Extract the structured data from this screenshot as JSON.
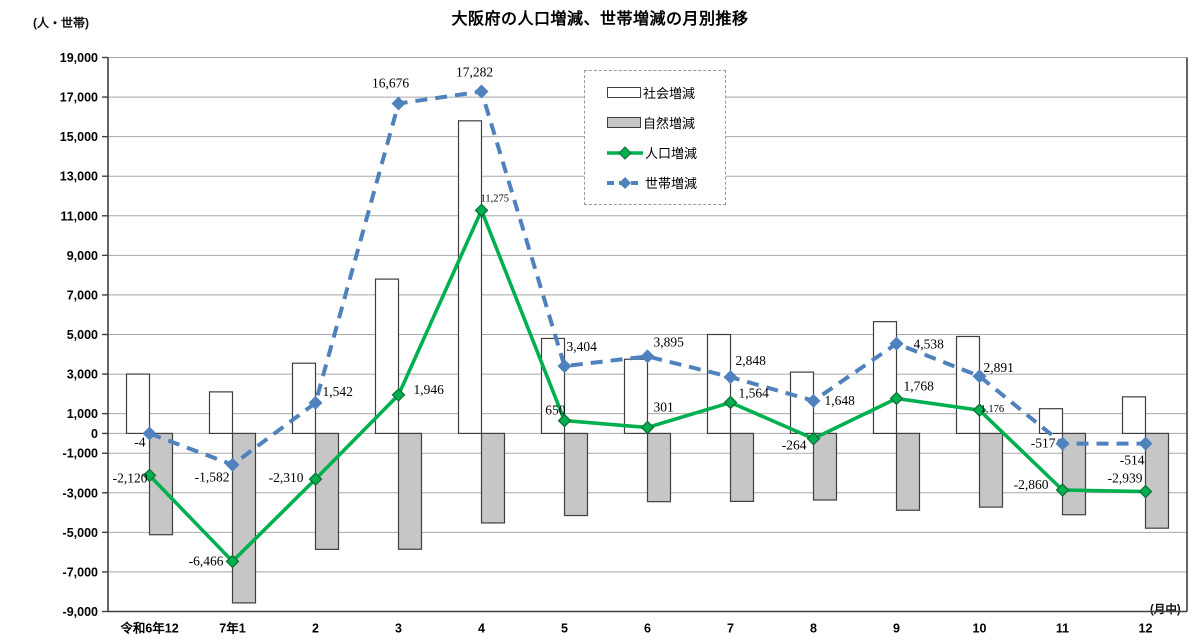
{
  "title": "大阪府の人口増減、世帯増減の月別推移",
  "y_axis_unit": "(人・世帯)",
  "x_axis_note": "(月中)",
  "legend": {
    "items": [
      {
        "label": "社会増減",
        "type": "bar",
        "color": "#FFFFFF"
      },
      {
        "label": "自然増減",
        "type": "bar",
        "color": "#C6C6C6"
      },
      {
        "label": "人口増減",
        "type": "line",
        "color": "#00B050"
      },
      {
        "label": "世帯増減",
        "type": "dashed-line",
        "color": "#4F81BD"
      }
    ]
  },
  "chart_data": {
    "type": "bar",
    "subtype": "bar+line combo",
    "title": "大阪府の人口増減、世帯増減の月別推移",
    "xlabel": "(月中)",
    "ylabel": "(人・世帯)",
    "categories": [
      "令和6年12",
      "7年1",
      "2",
      "3",
      "4",
      "5",
      "6",
      "7",
      "8",
      "9",
      "10",
      "11",
      "12"
    ],
    "y_axis": {
      "min": -9000,
      "max": 19000,
      "gridline_step": 2000,
      "ticks": [
        19000,
        17000,
        15000,
        13000,
        11000,
        9000,
        7000,
        5000,
        3000,
        1000,
        0,
        -1000,
        -3000,
        -5000,
        -7000,
        -9000
      ]
    },
    "grid": true,
    "legend_position": "inset top-center",
    "series": [
      {
        "name": "社会増減",
        "type": "bar",
        "fill": "#FFFFFF",
        "border": "#3F3F3F",
        "values": [
          3000,
          2100,
          3550,
          7800,
          15800,
          4800,
          3750,
          5000,
          3100,
          5650,
          4900,
          1250,
          1850
        ]
      },
      {
        "name": "自然増減",
        "type": "bar",
        "fill": "#C6C6C6",
        "border": "#3F3F3F",
        "values": [
          -5120,
          -8566,
          -5860,
          -5854,
          -4525,
          -4150,
          -3449,
          -3436,
          -3364,
          -3882,
          -3724,
          -4110,
          -4789
        ]
      },
      {
        "name": "人口増減",
        "type": "line",
        "color": "#00B050",
        "values": [
          -2120,
          -6466,
          -2310,
          1946,
          11275,
          650,
          301,
          1564,
          -264,
          1768,
          1176,
          -2860,
          -2939
        ],
        "labels": [
          "-2,120",
          "-6,466",
          "-2,310",
          "1,946",
          "11,275",
          "650",
          "301",
          "1,564",
          "-264",
          "1,768",
          "1,176",
          "-2,860",
          "-2,939"
        ]
      },
      {
        "name": "世帯増減",
        "type": "dashed-line",
        "color": "#4F81BD",
        "values": [
          -4,
          -1582,
          1542,
          16676,
          17282,
          3404,
          3895,
          2848,
          1648,
          4538,
          2891,
          -517,
          -514
        ],
        "labels": [
          "-4",
          "-1,582",
          "1,542",
          "16,676",
          "17,282",
          "3,404",
          "3,895",
          "2,848",
          "1,648",
          "4,538",
          "2,891",
          "-517",
          "-514"
        ]
      }
    ]
  }
}
